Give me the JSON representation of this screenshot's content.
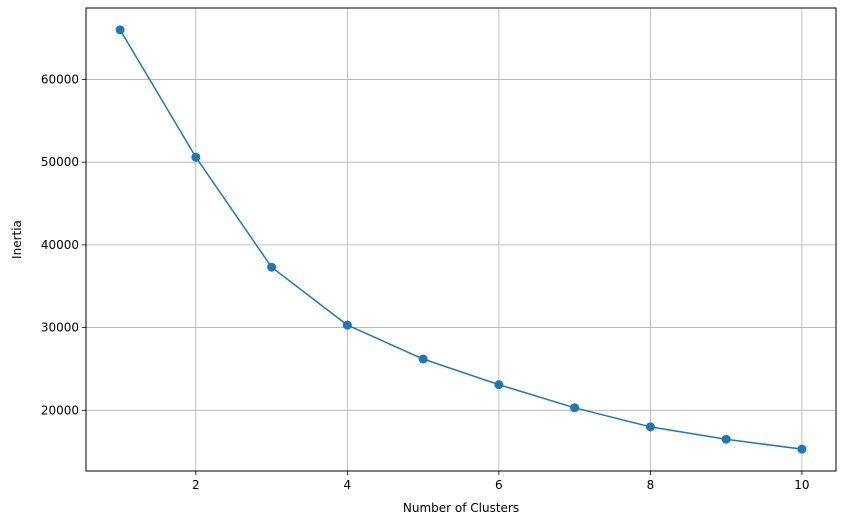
{
  "chart_data": {
    "type": "line",
    "title": "",
    "xlabel": "Number of Clusters",
    "ylabel": "Inertia",
    "x": [
      1,
      2,
      3,
      4,
      5,
      6,
      7,
      8,
      9,
      10
    ],
    "series": [
      {
        "values": [
          66000,
          50600,
          37300,
          30300,
          26200,
          23100,
          20300,
          18000,
          16500,
          15300
        ],
        "color": "#1f77b4",
        "marker": "circle"
      }
    ],
    "xlim": [
      0.55,
      10.45
    ],
    "ylim": [
      12660,
      68640
    ],
    "xticks": [
      2,
      4,
      6,
      8,
      10
    ],
    "xtick_labels": [
      "2",
      "4",
      "6",
      "8",
      "10"
    ],
    "yticks": [
      20000,
      30000,
      40000,
      50000,
      60000
    ],
    "ytick_labels": [
      "20000",
      "30000",
      "40000",
      "50000",
      "60000"
    ],
    "grid": true,
    "grid_color": "#b0b0b0",
    "legend": false
  }
}
